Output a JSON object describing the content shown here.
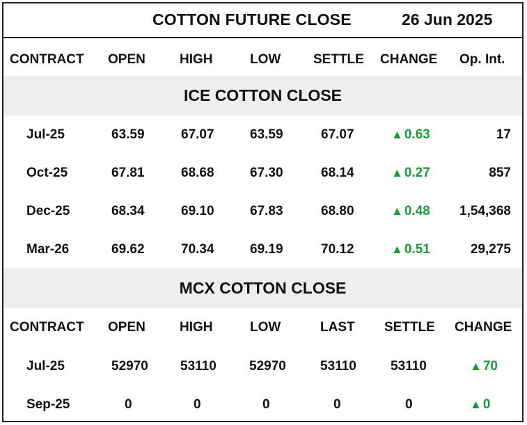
{
  "header": {
    "title": "COTTON FUTURE CLOSE",
    "date": "26 Jun 2025"
  },
  "ice": {
    "columns": [
      "CONTRACT",
      "OPEN",
      "HIGH",
      "LOW",
      "SETTLE",
      "CHANGE",
      "Op. Int."
    ],
    "section_title": "ICE COTTON CLOSE",
    "rows": [
      {
        "contract": "Jul-25",
        "open": "63.59",
        "high": "67.07",
        "low": "63.59",
        "settle": "67.07",
        "change": "0.63",
        "oi": "17"
      },
      {
        "contract": "Oct-25",
        "open": "67.81",
        "high": "68.68",
        "low": "67.30",
        "settle": "68.14",
        "change": "0.27",
        "oi": "857"
      },
      {
        "contract": "Dec-25",
        "open": "68.34",
        "high": "69.10",
        "low": "67.83",
        "settle": "68.80",
        "change": "0.48",
        "oi": "1,54,368"
      },
      {
        "contract": "Mar-26",
        "open": "69.62",
        "high": "70.34",
        "low": "69.19",
        "settle": "70.12",
        "change": "0.51",
        "oi": "29,275"
      }
    ]
  },
  "mcx": {
    "section_title": "MCX COTTON CLOSE",
    "columns": [
      "CONTRACT",
      "OPEN",
      "HIGH",
      "LOW",
      "LAST",
      "SETTLE",
      "CHANGE"
    ],
    "rows": [
      {
        "contract": "Jul-25",
        "open": "52970",
        "high": "53110",
        "low": "52970",
        "last": "53110",
        "settle": "53110",
        "change": "70"
      },
      {
        "contract": "Sep-25",
        "open": "0",
        "high": "0",
        "low": "0",
        "last": "0",
        "settle": "0",
        "change": "0"
      }
    ]
  },
  "icons": {
    "change_up": "triangle-up-icon"
  },
  "colors": {
    "up": "#1a9a3a",
    "band": "#eeeeee",
    "border": "#222222"
  }
}
